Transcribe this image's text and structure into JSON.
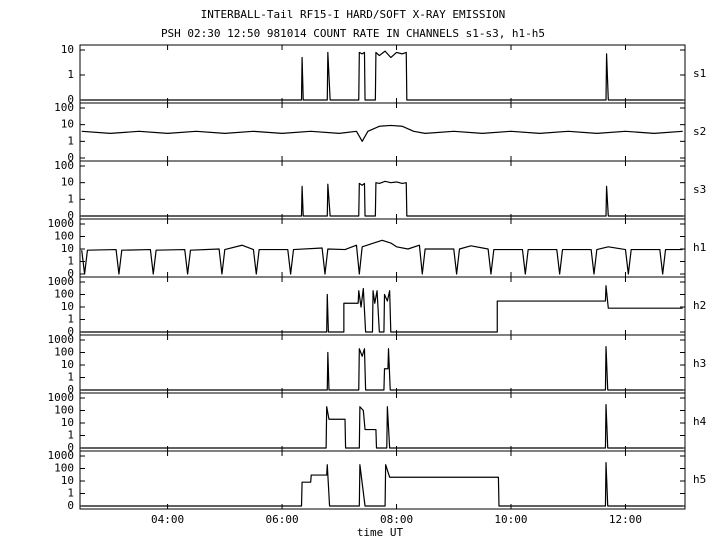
{
  "chart_data": {
    "type": "line",
    "title": "INTERBALL-Tail RF15-I HARD/SOFT X-RAY EMISSION",
    "subtitle": "PSH 02:30 12:50 981014  COUNT RATE IN CHANNELS s1-s3, h1-h5",
    "xlabel": "time UT",
    "xlim": [
      2.47,
      13.04
    ],
    "xticks": [
      {
        "value": 4,
        "label": "04:00"
      },
      {
        "value": 6,
        "label": "06:00"
      },
      {
        "value": 8,
        "label": "08:00"
      },
      {
        "value": 10,
        "label": "10:00"
      },
      {
        "value": 12,
        "label": "12:00"
      }
    ],
    "yscale": "log",
    "color": "#000000",
    "panels": [
      {
        "name": "s1",
        "ylim": [
          0,
          10
        ],
        "yticks": [
          0,
          1,
          10
        ],
        "x": [
          2.5,
          6.34,
          6.35,
          6.37,
          6.79,
          6.8,
          6.84,
          7.34,
          7.35,
          7.4,
          7.44,
          7.45,
          7.47,
          7.63,
          7.64,
          7.7,
          7.8,
          7.9,
          8.0,
          8.1,
          8.17,
          8.18,
          11.66,
          11.67,
          11.7,
          13.0
        ],
        "values": [
          0,
          0,
          5,
          0,
          0,
          8,
          0,
          0,
          8,
          7,
          8,
          0,
          0,
          0,
          8,
          6,
          9,
          5,
          8,
          7,
          8,
          0,
          0,
          7,
          0,
          0
        ]
      },
      {
        "name": "s2",
        "ylim": [
          0,
          100
        ],
        "yticks": [
          0,
          1,
          10,
          100
        ],
        "x": [
          2.5,
          3,
          3.5,
          4,
          4.5,
          5,
          5.5,
          6,
          6.5,
          7,
          7.3,
          7.4,
          7.5,
          7.7,
          7.9,
          8.1,
          8.3,
          8.5,
          9,
          9.5,
          10,
          10.5,
          11,
          11.5,
          12,
          12.5,
          13
        ],
        "values": [
          4,
          3,
          4,
          3,
          4,
          3,
          4,
          3,
          4,
          3,
          4,
          1,
          4,
          8,
          9,
          8,
          4,
          3,
          4,
          3,
          4,
          3,
          4,
          3,
          4,
          3,
          4
        ]
      },
      {
        "name": "s3",
        "ylim": [
          0,
          100
        ],
        "yticks": [
          0,
          1,
          10,
          100
        ],
        "x": [
          2.5,
          6.34,
          6.35,
          6.37,
          6.79,
          6.8,
          6.84,
          7.34,
          7.35,
          7.4,
          7.44,
          7.45,
          7.47,
          7.63,
          7.64,
          7.7,
          7.8,
          7.9,
          8.0,
          8.1,
          8.17,
          8.18,
          11.66,
          11.67,
          11.7,
          13.0
        ],
        "values": [
          0,
          0,
          6,
          0,
          0,
          8,
          0,
          0,
          9,
          7,
          9,
          0,
          0,
          0,
          10,
          9,
          12,
          10,
          11,
          9,
          10,
          0,
          0,
          6,
          0,
          0
        ]
      },
      {
        "name": "h1",
        "ylim": [
          0,
          1000
        ],
        "yticks": [
          0,
          1,
          10,
          100,
          1000
        ],
        "x": [
          2.5,
          2.55,
          2.6,
          3.1,
          3.15,
          3.2,
          3.7,
          3.75,
          3.8,
          4.3,
          4.35,
          4.4,
          4.9,
          4.95,
          5.0,
          5.3,
          5.5,
          5.55,
          5.6,
          6.1,
          6.15,
          6.2,
          6.7,
          6.75,
          6.8,
          7.1,
          7.3,
          7.35,
          7.4,
          7.6,
          7.75,
          7.9,
          8.0,
          8.2,
          8.4,
          8.45,
          8.5,
          9.0,
          9.05,
          9.1,
          9.3,
          9.6,
          9.65,
          9.7,
          10.2,
          10.25,
          10.3,
          10.8,
          10.85,
          10.9,
          11.4,
          11.45,
          11.5,
          11.7,
          12.0,
          12.05,
          12.1,
          12.6,
          12.65,
          12.7,
          13.0
        ],
        "values": [
          8,
          0,
          8,
          9,
          0,
          8,
          9,
          0,
          8,
          9,
          0,
          8,
          10,
          0,
          9,
          20,
          9,
          0,
          9,
          9,
          0,
          9,
          12,
          0,
          10,
          9,
          20,
          0,
          15,
          30,
          50,
          30,
          15,
          10,
          20,
          0,
          10,
          10,
          0,
          10,
          18,
          10,
          0,
          9,
          9,
          0,
          9,
          9,
          0,
          9,
          9,
          0,
          9,
          15,
          9,
          0,
          9,
          9,
          0,
          9,
          9
        ]
      },
      {
        "name": "h2",
        "ylim": [
          0,
          1000
        ],
        "yticks": [
          0,
          1,
          10,
          100,
          1000
        ],
        "x": [
          2.5,
          6.78,
          6.79,
          6.81,
          7.08,
          7.08,
          7.33,
          7.34,
          7.38,
          7.42,
          7.46,
          7.58,
          7.59,
          7.62,
          7.66,
          7.7,
          7.78,
          7.79,
          7.84,
          7.88,
          7.9,
          9.76,
          9.76,
          11.65,
          11.66,
          11.7,
          13.0
        ],
        "values": [
          0,
          0,
          100,
          0,
          0,
          20,
          20,
          200,
          10,
          300,
          0,
          0,
          200,
          20,
          200,
          0,
          0,
          100,
          30,
          200,
          0,
          0,
          30,
          30,
          500,
          8,
          8
        ]
      },
      {
        "name": "h3",
        "ylim": [
          0,
          1000
        ],
        "yticks": [
          0,
          1,
          10,
          100,
          1000
        ],
        "x": [
          2.5,
          6.79,
          6.8,
          6.82,
          7.34,
          7.35,
          7.4,
          7.44,
          7.46,
          7.78,
          7.79,
          7.85,
          7.86,
          7.89,
          11.65,
          11.66,
          11.69,
          13.0
        ],
        "values": [
          0,
          0,
          100,
          0,
          0,
          200,
          50,
          200,
          0,
          0,
          5,
          5,
          200,
          0,
          0,
          300,
          0,
          0
        ]
      },
      {
        "name": "h4",
        "ylim": [
          0,
          1000
        ],
        "yticks": [
          0,
          1,
          10,
          100,
          1000
        ],
        "x": [
          2.5,
          6.77,
          6.78,
          6.82,
          7.1,
          7.11,
          7.35,
          7.36,
          7.42,
          7.45,
          7.64,
          7.65,
          7.83,
          7.84,
          7.88,
          11.65,
          11.66,
          11.69,
          13.0
        ],
        "values": [
          0,
          0,
          200,
          20,
          20,
          0,
          0,
          200,
          100,
          3,
          3,
          0,
          0,
          200,
          0,
          0,
          300,
          0,
          0
        ]
      },
      {
        "name": "h5",
        "ylim": [
          0,
          1000
        ],
        "yticks": [
          0,
          1,
          10,
          100,
          1000
        ],
        "x": [
          2.5,
          6.34,
          6.35,
          6.5,
          6.51,
          6.78,
          6.79,
          6.83,
          7.35,
          7.36,
          7.45,
          7.8,
          7.81,
          7.88,
          9.78,
          9.79,
          11.65,
          11.66,
          11.69,
          13.0
        ],
        "values": [
          0,
          0,
          8,
          8,
          30,
          30,
          200,
          0,
          0,
          200,
          0,
          0,
          200,
          20,
          20,
          0,
          0,
          300,
          0,
          0
        ]
      }
    ]
  }
}
